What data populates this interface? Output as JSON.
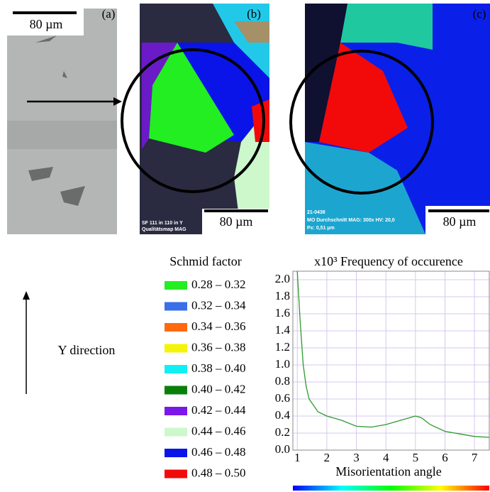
{
  "panels": [
    {
      "label": "(a)",
      "scale_bar": "80 µm"
    },
    {
      "label": "(b)",
      "scale_bar": "80 µm",
      "footer": [
        "SF  111 in 110 in Y",
        "Qualitätsmap    MAG"
      ]
    },
    {
      "label": "(c)",
      "scale_bar": "80 µm",
      "footer": [
        "21-0438",
        "MO Durchschnitt    MAG: 300x    HV: 20,0",
        "Px: 0,51 µm"
      ]
    }
  ],
  "direction_label": "Y direction",
  "legend": {
    "title": "Schmid factor",
    "items": [
      {
        "label": "0.28 – 0.32",
        "color": "#22ee22"
      },
      {
        "label": "0.32 – 0.34",
        "color": "#3a6fe8"
      },
      {
        "label": "0.34 – 0.36",
        "color": "#ff6a10"
      },
      {
        "label": "0.36 – 0.38",
        "color": "#f4f40a"
      },
      {
        "label": "0.38 – 0.40",
        "color": "#10f0f4"
      },
      {
        "label": "0.40 – 0.42",
        "color": "#0a800a"
      },
      {
        "label": "0.42 – 0.44",
        "color": "#7a18e8"
      },
      {
        "label": "0.44 – 0.46",
        "color": "#ccf8cc"
      },
      {
        "label": "0.46 – 0.48",
        "color": "#0a14e8"
      },
      {
        "label": "0.48 – 0.50",
        "color": "#f20a0a"
      }
    ]
  },
  "chart_data": {
    "type": "line",
    "title": "x10³ Frequency of occurence",
    "x_label": "Misorientation angle",
    "x": [
      1.0,
      1.1,
      1.2,
      1.3,
      1.4,
      1.5,
      1.7,
      2.0,
      2.5,
      3.0,
      3.5,
      4.0,
      4.5,
      5.0,
      5.2,
      5.5,
      6.0,
      6.5,
      7.0,
      7.5
    ],
    "values": [
      2.1,
      1.5,
      1.0,
      0.75,
      0.6,
      0.55,
      0.45,
      0.4,
      0.35,
      0.28,
      0.27,
      0.3,
      0.35,
      0.4,
      0.38,
      0.3,
      0.22,
      0.19,
      0.16,
      0.15
    ],
    "color": "#2e9a2e",
    "xlim": [
      0.85,
      7.5
    ],
    "ylim": [
      0,
      2.1
    ],
    "xticks": [
      1,
      2,
      3,
      4,
      5,
      6,
      7
    ],
    "yticks": [
      {
        "value": 0,
        "label": "0.0"
      },
      0.2,
      0.4,
      0.6,
      0.8,
      {
        "value": 1,
        "label": "1.0"
      },
      1.2,
      1.4,
      1.6,
      1.8,
      {
        "value": 2,
        "label": "2.0"
      }
    ],
    "grid": true
  }
}
